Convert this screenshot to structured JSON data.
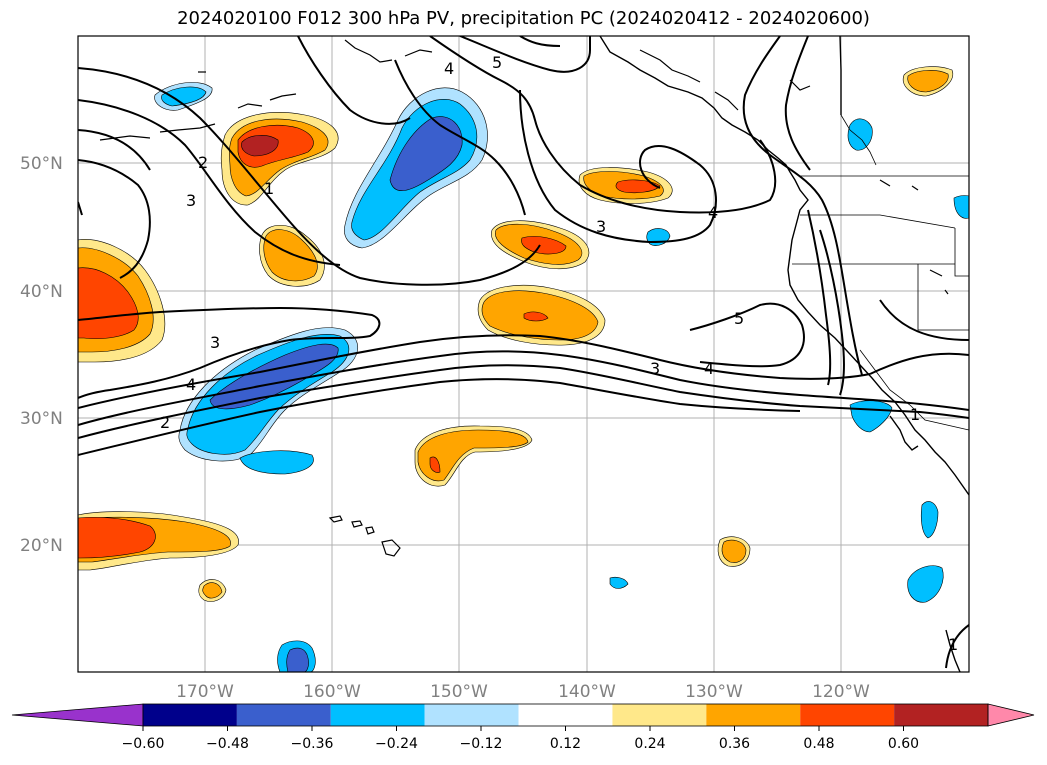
{
  "title": "2024020100 F012 300 hPa PV, precipitation PC (2024020412 - 2024020600)",
  "map": {
    "region": "North Pacific / North American west coast",
    "gridlines": true,
    "lat_ticks": [
      "50°N",
      "40°N",
      "30°N",
      "20°N"
    ],
    "lon_ticks": [
      "170°W",
      "160°W",
      "150°W",
      "140°W",
      "130°W",
      "120°W"
    ],
    "pv_contour_labels": [
      "2",
      "3",
      "1",
      "4",
      "5",
      "3",
      "4",
      "5",
      "4",
      "3",
      "2",
      "3",
      "4",
      "1",
      "1"
    ]
  },
  "colorbar": {
    "labels": [
      "−0.60",
      "−0.48",
      "−0.36",
      "−0.24",
      "−0.12",
      "0.12",
      "0.24",
      "0.36",
      "0.48",
      "0.60"
    ],
    "colors": [
      "#9932cc",
      "#00008b",
      "#3a5fcd",
      "#00bfff",
      "#b0e2ff",
      "#ffffff",
      "#ffe88a",
      "#ffa500",
      "#ff4500",
      "#b22222",
      "#ff88aa"
    ]
  },
  "colors": {
    "neg_light": "#b0e2ff",
    "neg_mid": "#00bfff",
    "neg_dark": "#3a5fcd",
    "pos_light": "#ffe88a",
    "pos_mid": "#ffa500",
    "pos_dark": "#ff4500",
    "pos_darker": "#b22222",
    "grid": "#b0b0b0",
    "coast": "#000000"
  }
}
